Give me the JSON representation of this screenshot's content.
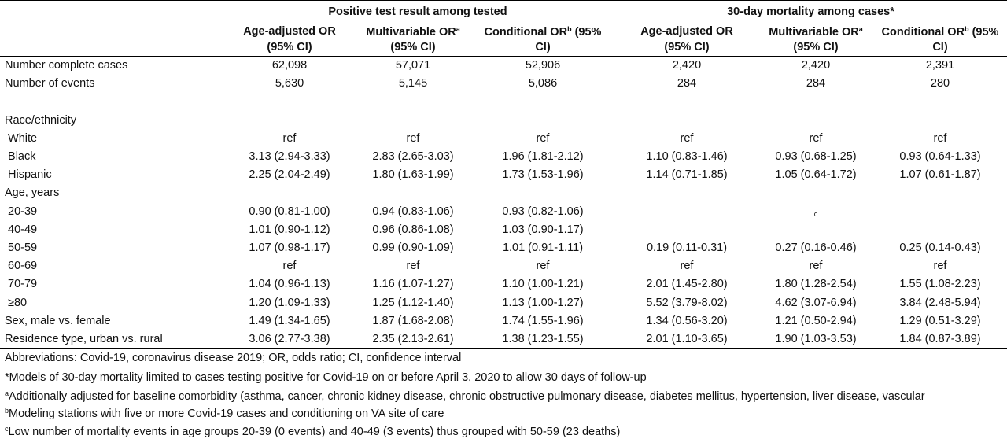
{
  "group_headers": {
    "positive": "Positive test result among tested",
    "mortality": "30-day mortality among cases*"
  },
  "col_headers": [
    {
      "l1": "Age-adjusted OR",
      "sup": "",
      "l1b": "",
      "l2": "(95% CI)"
    },
    {
      "l1": "Multivariable OR",
      "sup": "a",
      "l1b": "",
      "l2": "(95% CI)"
    },
    {
      "l1": "Conditional OR",
      "sup": "b",
      "l1b": " (95%",
      "l2": "CI)"
    },
    {
      "l1": "Age-adjusted OR",
      "sup": "",
      "l1b": "",
      "l2": "(95% CI)"
    },
    {
      "l1": "Multivariable OR",
      "sup": "a",
      "l1b": "",
      "l2": "(95% CI)"
    },
    {
      "l1": "Conditional OR",
      "sup": "b",
      "l1b": " (95%",
      "l2": "CI)"
    }
  ],
  "rows": [
    {
      "label": "Number complete cases",
      "v": [
        "62,098",
        "57,071",
        "52,906",
        "2,420",
        "2,420",
        "2,391"
      ]
    },
    {
      "label": "Number of events",
      "v": [
        "5,630",
        "5,145",
        "5,086",
        "284",
        "284",
        "280"
      ]
    },
    {
      "label": "",
      "v": [
        "",
        "",
        "",
        "",
        "",
        ""
      ]
    },
    {
      "label": "Race/ethnicity",
      "v": [
        "",
        "",
        "",
        "",
        "",
        ""
      ]
    },
    {
      "label": " White",
      "v": [
        "ref",
        "ref",
        "ref",
        "ref",
        "ref",
        "ref"
      ]
    },
    {
      "label": " Black",
      "v": [
        "3.13 (2.94-3.33)",
        "2.83 (2.65-3.03)",
        "1.96 (1.81-2.12)",
        "1.10 (0.83-1.46)",
        "0.93 (0.68-1.25)",
        "0.93 (0.64-1.33)"
      ]
    },
    {
      "label": " Hispanic",
      "v": [
        "2.25 (2.04-2.49)",
        "1.80 (1.63-1.99)",
        "1.73 (1.53-1.96)",
        "1.14 (0.71-1.85)",
        "1.05 (0.64-1.72)",
        "1.07 (0.61-1.87)"
      ]
    },
    {
      "label": "Age, years",
      "v": [
        "",
        "",
        "",
        "",
        "",
        ""
      ]
    },
    {
      "label": " 20-39",
      "v": [
        "0.90 (0.81-1.00)",
        "0.94 (0.83-1.06)",
        "0.93 (0.82-1.06)",
        "",
        "c",
        ""
      ]
    },
    {
      "label": " 40-49",
      "v": [
        "1.01 (0.90-1.12)",
        "0.96 (0.86-1.08)",
        "1.03 (0.90-1.17)",
        "",
        "",
        ""
      ]
    },
    {
      "label": " 50-59",
      "v": [
        "1.07 (0.98-1.17)",
        "0.99 (0.90-1.09)",
        "1.01 (0.91-1.11)",
        "0.19 (0.11-0.31)",
        "0.27 (0.16-0.46)",
        "0.25 (0.14-0.43)"
      ]
    },
    {
      "label": " 60-69",
      "v": [
        "ref",
        "ref",
        "ref",
        "ref",
        "ref",
        "ref"
      ]
    },
    {
      "label": " 70-79",
      "v": [
        "1.04 (0.96-1.13)",
        "1.16 (1.07-1.27)",
        "1.10 (1.00-1.21)",
        "2.01 (1.45-2.80)",
        "1.80 (1.28-2.54)",
        "1.55 (1.08-2.23)"
      ]
    },
    {
      "label": " ≥80",
      "v": [
        "1.20 (1.09-1.33)",
        "1.25 (1.12-1.40)",
        "1.13 (1.00-1.27)",
        "5.52 (3.79-8.02)",
        "4.62 (3.07-6.94)",
        "3.84 (2.48-5.94)"
      ]
    },
    {
      "label": "Sex, male vs. female",
      "v": [
        "1.49 (1.34-1.65)",
        "1.87 (1.68-2.08)",
        "1.74 (1.55-1.96)",
        "1.34 (0.56-3.20)",
        "1.21 (0.50-2.94)",
        "1.29 (0.51-3.29)"
      ]
    },
    {
      "label": "Residence type, urban vs. rural",
      "v": [
        "3.06 (2.77-3.38)",
        "2.35 (2.13-2.61)",
        "1.38 (1.23-1.55)",
        "2.01 (1.10-3.65)",
        "1.90 (1.03-3.53)",
        "1.84 (0.87-3.89)"
      ]
    }
  ],
  "footnotes": [
    {
      "sup": "",
      "text": "Abbreviations: Covid-19, coronavirus disease 2019; OR, odds ratio; CI, confidence interval"
    },
    {
      "sup": "",
      "text": "*Models of 30-day mortality limited to cases testing positive for Covid-19 on or before April 3, 2020 to allow 30 days of follow-up"
    },
    {
      "sup": "a",
      "text": "Additionally adjusted for baseline comorbidity (asthma, cancer, chronic kidney disease, chronic obstructive pulmonary disease, diabetes mellitus, hypertension, liver disease, vascular"
    },
    {
      "sup": "b",
      "text": "Modeling stations with five or more Covid-19 cases and conditioning on VA site of care"
    },
    {
      "sup": "c",
      "text": "Low number of mortality events in age groups 20-39 (0 events) and 40-49 (3 events) thus grouped with 50-59 (23 deaths)"
    }
  ]
}
